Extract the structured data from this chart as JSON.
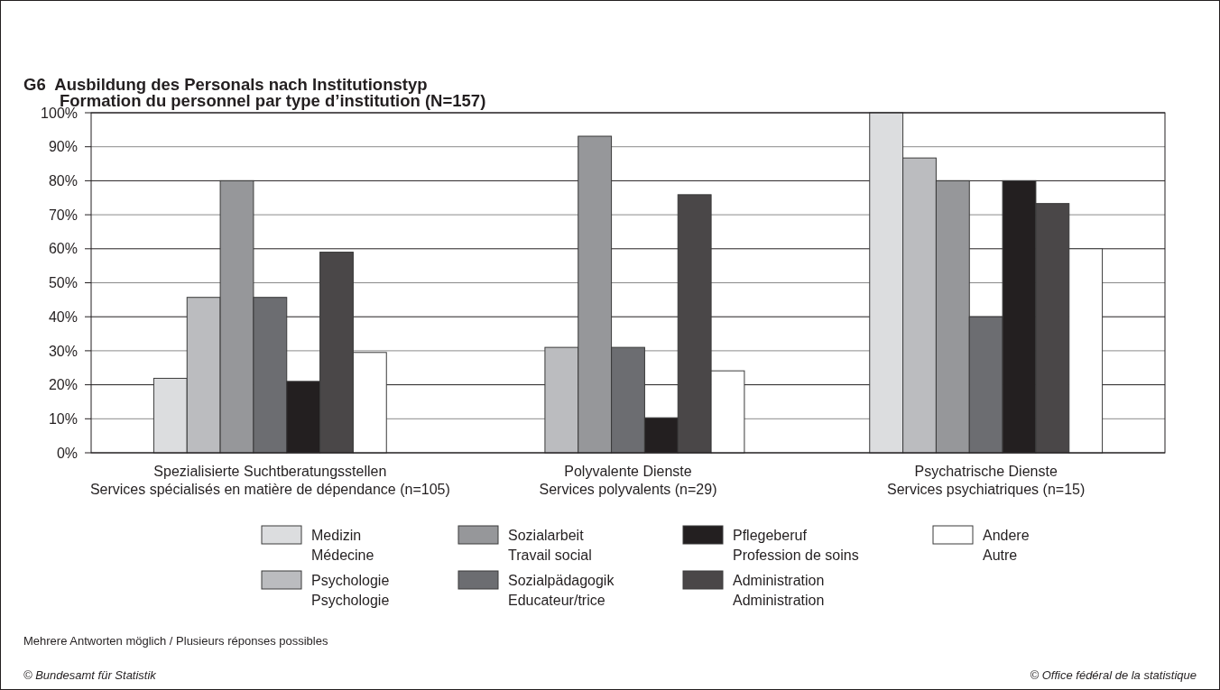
{
  "chart_data": {
    "type": "bar",
    "title": "G6  Ausbildung des Personals nach Institutionstyp",
    "subtitle": "Formation du personnel par type d’institution (N=157)",
    "categories": [
      "Spezialisierte Suchtberatungsstellen\nServices spécialisés en matière de dépendance (n=105)",
      "Polyvalente Dienste\nServices polyvalents (n=29)",
      "Psychatrische Dienste\nServices psychiatriques (n=15)"
    ],
    "series": [
      {
        "name": "Medizin\nMédecine",
        "color": "#dcdddf",
        "values": [
          21.9,
          0,
          100
        ]
      },
      {
        "name": "Psychologie\nPsychologie",
        "color": "#bbbcbf",
        "values": [
          45.7,
          31,
          86.7
        ]
      },
      {
        "name": "Sozialarbeit\nTravail social",
        "color": "#96979a",
        "values": [
          80,
          93.1,
          80
        ]
      },
      {
        "name": "Sozialpädagogik\nEducateur/trice",
        "color": "#6c6d71",
        "values": [
          45.7,
          31,
          40
        ]
      },
      {
        "name": "Pflegeberuf\nProfession de soins",
        "color": "#231f20",
        "values": [
          21,
          10.3,
          80
        ]
      },
      {
        "name": "Administration\nAdministration",
        "color": "#4a4748",
        "values": [
          59,
          75.9,
          73.3
        ]
      },
      {
        "name": "Andere\nAutre",
        "color": "#ffffff",
        "values": [
          29.5,
          24.1,
          60
        ]
      }
    ],
    "ylim": [
      0,
      100
    ],
    "yticks": [
      {
        "value": 0,
        "label": "0%"
      },
      {
        "value": 10,
        "label": "10%"
      },
      {
        "value": 20,
        "label": "20%"
      },
      {
        "value": 30,
        "label": "30%"
      },
      {
        "value": 40,
        "label": "40%"
      },
      {
        "value": 50,
        "label": "50%"
      },
      {
        "value": 60,
        "label": "60%"
      },
      {
        "value": 70,
        "label": "70%"
      },
      {
        "value": 80,
        "label": "80%"
      },
      {
        "value": 90,
        "label": "90%"
      },
      {
        "value": 100,
        "label": "100%"
      }
    ],
    "grid": "y",
    "legend": "bottom",
    "annotations": [
      "Mehrere Antworten möglich / Plusieurs réponses possibles",
      "© Bundesamt für Statistik",
      "© Office fédéral de la statistique"
    ]
  }
}
